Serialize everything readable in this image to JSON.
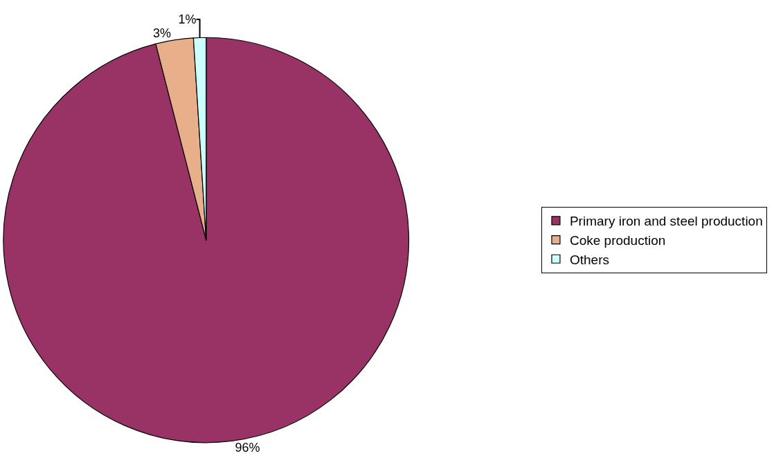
{
  "chart_data": {
    "type": "pie",
    "categories": [
      "Primary iron and steel production",
      "Coke production",
      "Others"
    ],
    "values": [
      96,
      3,
      1
    ],
    "colors": [
      "#993366",
      "#e8b08a",
      "#ccffff"
    ],
    "value_labels": [
      "96%",
      "3%",
      "1%"
    ],
    "legend": "right"
  }
}
